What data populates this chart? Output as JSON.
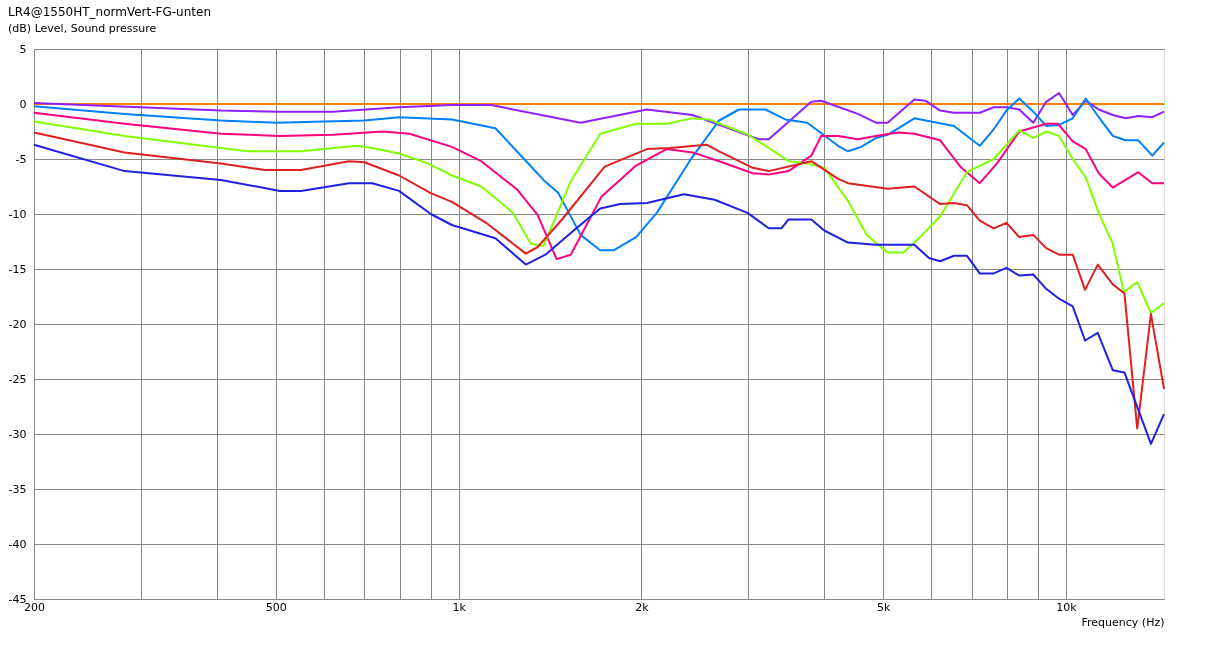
{
  "chart_data": {
    "type": "line",
    "title": "LR4@1550HT_normVert-FG-unten",
    "ylabel": "(dB)  Level, Sound pressure",
    "xlabel": "Frequency  (Hz)",
    "log": "x",
    "grid": true,
    "legend": false,
    "line_style": "solid",
    "marker": "none",
    "xlim": [
      200,
      14500
    ],
    "xticks": [
      200,
      {
        "value": 300,
        "label": null
      },
      {
        "value": 400,
        "label": null
      },
      500,
      {
        "value": 600,
        "label": null
      },
      {
        "value": 700,
        "label": null
      },
      {
        "value": 800,
        "label": null
      },
      {
        "value": 900,
        "label": null
      },
      {
        "value": 1000,
        "label": "1k"
      },
      {
        "value": 2000,
        "label": "2k"
      },
      {
        "value": 3000,
        "label": null
      },
      {
        "value": 4000,
        "label": null
      },
      {
        "value": 5000,
        "label": "5k"
      },
      {
        "value": 6000,
        "label": null
      },
      {
        "value": 7000,
        "label": null
      },
      {
        "value": 8000,
        "label": null
      },
      {
        "value": 9000,
        "label": null
      },
      {
        "value": 10000,
        "label": "10k"
      }
    ],
    "ylim": [
      -45,
      5
    ],
    "yticks": [
      -45,
      -40,
      -35,
      -30,
      -25,
      -20,
      -15,
      -10,
      -5,
      0,
      5
    ],
    "series": [
      {
        "color": "#ff8000",
        "x": [
          200,
          14500
        ],
        "values": [
          0,
          0
        ]
      },
      {
        "color": "#9020ff",
        "x": [
          200,
          406,
          508,
          621,
          798,
          975,
          1132,
          1588,
          2042,
          2427,
          3120,
          3241,
          3808,
          3954,
          4543,
          4863,
          5085,
          5628,
          5865,
          6207,
          6541,
          7211,
          7603,
          7981,
          8378,
          8836,
          9277,
          9740,
          10260,
          10780,
          11320,
          11940,
          12530,
          13150,
          13870,
          14500
        ],
        "values": [
          0.1,
          -0.6,
          -0.7,
          -0.7,
          -0.3,
          -0.1,
          -0.1,
          -1.7,
          -0.5,
          -1.0,
          -3.2,
          -3.2,
          0.2,
          0.3,
          -0.9,
          -1.7,
          -1.7,
          0.4,
          0.3,
          -0.6,
          -0.8,
          -0.8,
          -0.3,
          -0.3,
          -0.5,
          -1.7,
          0.2,
          1.0,
          -1.0,
          0.3,
          -0.5,
          -1.0,
          -1.3,
          -1.1,
          -1.2,
          -0.7
        ]
      },
      {
        "color": "#0080ff",
        "x": [
          200,
          282,
          406,
          500,
          700,
          798,
          975,
          1150,
          1267,
          1380,
          1460,
          1588,
          1711,
          1800,
          1960,
          2120,
          2427,
          2685,
          2896,
          3200,
          3450,
          3750,
          4215,
          4375,
          4600,
          4863,
          5085,
          5628,
          6541,
          7211,
          7603,
          7981,
          8378,
          8836,
          9277,
          9740,
          10260,
          10780,
          11320,
          11940,
          12530,
          13150,
          13870,
          14500
        ],
        "values": [
          -0.2,
          -0.9,
          -1.5,
          -1.7,
          -1.5,
          -1.2,
          -1.4,
          -2.2,
          -4.7,
          -6.9,
          -8.1,
          -11.9,
          -13.3,
          -13.3,
          -12.1,
          -9.9,
          -4.8,
          -1.5,
          -0.5,
          -0.5,
          -1.4,
          -1.7,
          -3.8,
          -4.3,
          -3.9,
          -3.1,
          -2.8,
          -1.3,
          -2.0,
          -3.8,
          -2.3,
          -0.6,
          0.5,
          -0.7,
          -2.0,
          -1.9,
          -1.3,
          0.5,
          -1.2,
          -2.9,
          -3.3,
          -3.3,
          -4.7,
          -3.5
        ]
      },
      {
        "color": "#ff0080",
        "x": [
          200,
          282,
          406,
          508,
          621,
          750,
          830,
          975,
          1090,
          1250,
          1350,
          1450,
          1530,
          1720,
          1960,
          2200,
          2427,
          2685,
          3050,
          3241,
          3493,
          3808,
          3954,
          4215,
          4543,
          4863,
          5300,
          5628,
          6207,
          6700,
          7211,
          7700,
          8378,
          9277,
          9700,
          10260,
          10780,
          11320,
          11940,
          12530,
          13150,
          13870,
          14500
        ],
        "values": [
          -0.8,
          -1.8,
          -2.7,
          -2.9,
          -2.8,
          -2.5,
          -2.7,
          -3.9,
          -5.2,
          -7.8,
          -10.1,
          -14.1,
          -13.7,
          -8.4,
          -5.6,
          -4.1,
          -4.4,
          -5.2,
          -6.3,
          -6.4,
          -6.1,
          -4.7,
          -2.9,
          -2.9,
          -3.2,
          -2.9,
          -2.6,
          -2.7,
          -3.3,
          -5.7,
          -7.2,
          -5.4,
          -2.5,
          -1.8,
          -1.8,
          -3.4,
          -4.1,
          -6.3,
          -7.6,
          -6.9,
          -6.2,
          -7.2,
          -7.2
        ]
      },
      {
        "color": "#80ff00",
        "x": [
          200,
          282,
          406,
          450,
          550,
          680,
          721,
          798,
          890,
          975,
          1090,
          1230,
          1315,
          1380,
          1528,
          1711,
          1960,
          2200,
          2427,
          2580,
          3000,
          3500,
          3750,
          4000,
          4375,
          4700,
          5085,
          5400,
          5800,
          6207,
          6870,
          7603,
          8378,
          8836,
          9277,
          9740,
          10260,
          10780,
          11320,
          11940,
          12450,
          13100,
          13800,
          14500
        ],
        "values": [
          -1.6,
          -2.9,
          -4.0,
          -4.3,
          -4.3,
          -3.8,
          -4.0,
          -4.5,
          -5.4,
          -6.5,
          -7.5,
          -9.9,
          -12.7,
          -12.9,
          -7.1,
          -2.7,
          -1.8,
          -1.8,
          -1.3,
          -1.4,
          -2.8,
          -5.2,
          -5.4,
          -5.8,
          -8.8,
          -11.9,
          -13.5,
          -13.5,
          -11.9,
          -10.2,
          -6.2,
          -5.0,
          -2.4,
          -3.1,
          -2.5,
          -2.9,
          -5.0,
          -6.7,
          -9.9,
          -12.7,
          -17.1,
          -16.2,
          -19.0,
          -18.1
        ]
      },
      {
        "color": "#e02020",
        "x": [
          200,
          282,
          406,
          480,
          550,
          660,
          700,
          798,
          900,
          975,
          1110,
          1290,
          1350,
          1480,
          1740,
          2042,
          2225,
          2560,
          2685,
          3050,
          3241,
          3808,
          4215,
          4375,
          5085,
          5628,
          6207,
          6541,
          6870,
          7211,
          7603,
          7981,
          8378,
          8836,
          9277,
          9740,
          10260,
          10750,
          11280,
          11940,
          12480,
          13100,
          13800,
          14500
        ],
        "values": [
          -2.6,
          -4.4,
          -5.4,
          -6.0,
          -6.0,
          -5.2,
          -5.3,
          -6.5,
          -8.1,
          -8.9,
          -10.8,
          -13.6,
          -13.0,
          -10.5,
          -5.7,
          -4.1,
          -4.0,
          -3.7,
          -4.3,
          -5.8,
          -6.1,
          -5.2,
          -6.8,
          -7.2,
          -7.7,
          -7.5,
          -9.1,
          -9.0,
          -9.2,
          -10.6,
          -11.3,
          -10.8,
          -12.1,
          -11.9,
          -13.1,
          -13.7,
          -13.7,
          -16.9,
          -14.6,
          -16.4,
          -17.2,
          -29.5,
          -19.1,
          -25.9
        ]
      },
      {
        "color": "#2020e0",
        "x": [
          200,
          282,
          406,
          508,
          550,
          660,
          721,
          798,
          900,
          975,
          1150,
          1290,
          1390,
          1540,
          1711,
          1845,
          2042,
          2350,
          2640,
          2990,
          3241,
          3400,
          3493,
          3808,
          4000,
          4375,
          4863,
          5628,
          5950,
          6207,
          6541,
          6870,
          7211,
          7603,
          7981,
          8378,
          8836,
          9277,
          9740,
          10260,
          10750,
          11280,
          11940,
          12480,
          13800,
          14500
        ],
        "values": [
          -3.7,
          -6.1,
          -6.9,
          -7.9,
          -7.9,
          -7.2,
          -7.2,
          -7.9,
          -10.0,
          -11.0,
          -12.2,
          -14.6,
          -13.7,
          -11.6,
          -9.5,
          -9.1,
          -9.0,
          -8.2,
          -8.7,
          -9.9,
          -11.3,
          -11.3,
          -10.5,
          -10.5,
          -11.5,
          -12.6,
          -12.8,
          -12.8,
          -14.0,
          -14.3,
          -13.8,
          -13.8,
          -15.4,
          -15.4,
          -14.9,
          -15.6,
          -15.5,
          -16.8,
          -17.7,
          -18.4,
          -21.5,
          -20.8,
          -24.2,
          -24.4,
          -30.9,
          -28.2
        ]
      }
    ]
  }
}
